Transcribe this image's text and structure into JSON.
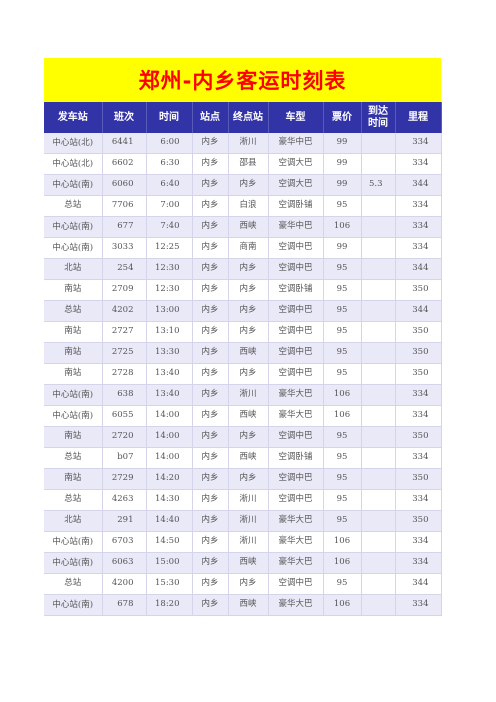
{
  "title": "郑州-内乡客运时刻表",
  "headers": {
    "station": "发车站",
    "trip": "班次",
    "time": "时间",
    "via": "站点",
    "terminal": "终点站",
    "bus_type": "车型",
    "fare": "票价",
    "arrival": "到达时间",
    "mileage": "里程"
  },
  "rows": [
    {
      "station": "中心站(北)",
      "trip": "6441",
      "time": "6:00",
      "via": "内乡",
      "terminal": "淅川",
      "bus_type": "豪华中巴",
      "fare": "99",
      "arrival": "",
      "mileage": "334"
    },
    {
      "station": "中心站(北)",
      "trip": "6602",
      "time": "6:30",
      "via": "内乡",
      "terminal": "邵县",
      "bus_type": "空调大巴",
      "fare": "99",
      "arrival": "",
      "mileage": "334"
    },
    {
      "station": "中心站(南)",
      "trip": "6060",
      "time": "6:40",
      "via": "内乡",
      "terminal": "内乡",
      "bus_type": "空调大巴",
      "fare": "99",
      "arrival": "5.3",
      "mileage": "344"
    },
    {
      "station": "总站",
      "trip": "7706",
      "time": "7:00",
      "via": "内乡",
      "terminal": "白浪",
      "bus_type": "空调卧铺",
      "fare": "95",
      "arrival": "",
      "mileage": "334"
    },
    {
      "station": "中心站(南)",
      "trip": "677",
      "time": "7:40",
      "via": "内乡",
      "terminal": "西峡",
      "bus_type": "豪华中巴",
      "fare": "106",
      "arrival": "",
      "mileage": "334"
    },
    {
      "station": "中心站(南)",
      "trip": "3033",
      "time": "12:25",
      "via": "内乡",
      "terminal": "商南",
      "bus_type": "空调中巴",
      "fare": "99",
      "arrival": "",
      "mileage": "334"
    },
    {
      "station": "北站",
      "trip": "254",
      "time": "12:30",
      "via": "内乡",
      "terminal": "内乡",
      "bus_type": "空调中巴",
      "fare": "95",
      "arrival": "",
      "mileage": "344"
    },
    {
      "station": "南站",
      "trip": "2709",
      "time": "12:30",
      "via": "内乡",
      "terminal": "内乡",
      "bus_type": "空调卧铺",
      "fare": "95",
      "arrival": "",
      "mileage": "350"
    },
    {
      "station": "总站",
      "trip": "4202",
      "time": "13:00",
      "via": "内乡",
      "terminal": "内乡",
      "bus_type": "空调中巴",
      "fare": "95",
      "arrival": "",
      "mileage": "344"
    },
    {
      "station": "南站",
      "trip": "2727",
      "time": "13:10",
      "via": "内乡",
      "terminal": "内乡",
      "bus_type": "空调中巴",
      "fare": "95",
      "arrival": "",
      "mileage": "350"
    },
    {
      "station": "南站",
      "trip": "2725",
      "time": "13:30",
      "via": "内乡",
      "terminal": "西峡",
      "bus_type": "空调中巴",
      "fare": "95",
      "arrival": "",
      "mileage": "350"
    },
    {
      "station": "南站",
      "trip": "2728",
      "time": "13:40",
      "via": "内乡",
      "terminal": "内乡",
      "bus_type": "空调中巴",
      "fare": "95",
      "arrival": "",
      "mileage": "350"
    },
    {
      "station": "中心站(南)",
      "trip": "638",
      "time": "13:40",
      "via": "内乡",
      "terminal": "淅川",
      "bus_type": "豪华大巴",
      "fare": "106",
      "arrival": "",
      "mileage": "334"
    },
    {
      "station": "中心站(南)",
      "trip": "6055",
      "time": "14:00",
      "via": "内乡",
      "terminal": "西峡",
      "bus_type": "豪华大巴",
      "fare": "106",
      "arrival": "",
      "mileage": "334"
    },
    {
      "station": "南站",
      "trip": "2720",
      "time": "14:00",
      "via": "内乡",
      "terminal": "内乡",
      "bus_type": "空调中巴",
      "fare": "95",
      "arrival": "",
      "mileage": "350"
    },
    {
      "station": "总站",
      "trip": "b07",
      "time": "14:00",
      "via": "内乡",
      "terminal": "西峡",
      "bus_type": "空调卧铺",
      "fare": "95",
      "arrival": "",
      "mileage": "334"
    },
    {
      "station": "南站",
      "trip": "2729",
      "time": "14:20",
      "via": "内乡",
      "terminal": "内乡",
      "bus_type": "空调中巴",
      "fare": "95",
      "arrival": "",
      "mileage": "350"
    },
    {
      "station": "总站",
      "trip": "4263",
      "time": "14:30",
      "via": "内乡",
      "terminal": "淅川",
      "bus_type": "空调中巴",
      "fare": "95",
      "arrival": "",
      "mileage": "334"
    },
    {
      "station": "北站",
      "trip": "291",
      "time": "14:40",
      "via": "内乡",
      "terminal": "淅川",
      "bus_type": "豪华大巴",
      "fare": "95",
      "arrival": "",
      "mileage": "350"
    },
    {
      "station": "中心站(南)",
      "trip": "6703",
      "time": "14:50",
      "via": "内乡",
      "terminal": "淅川",
      "bus_type": "豪华大巴",
      "fare": "106",
      "arrival": "",
      "mileage": "334"
    },
    {
      "station": "中心站(南)",
      "trip": "6063",
      "time": "15:00",
      "via": "内乡",
      "terminal": "西峡",
      "bus_type": "豪华大巴",
      "fare": "106",
      "arrival": "",
      "mileage": "334"
    },
    {
      "station": "总站",
      "trip": "4200",
      "time": "15:30",
      "via": "内乡",
      "terminal": "内乡",
      "bus_type": "空调中巴",
      "fare": "95",
      "arrival": "",
      "mileage": "344"
    },
    {
      "station": "中心站(南)",
      "trip": "678",
      "time": "18:20",
      "via": "内乡",
      "terminal": "西峡",
      "bus_type": "豪华大巴",
      "fare": "106",
      "arrival": "",
      "mileage": "334"
    }
  ]
}
